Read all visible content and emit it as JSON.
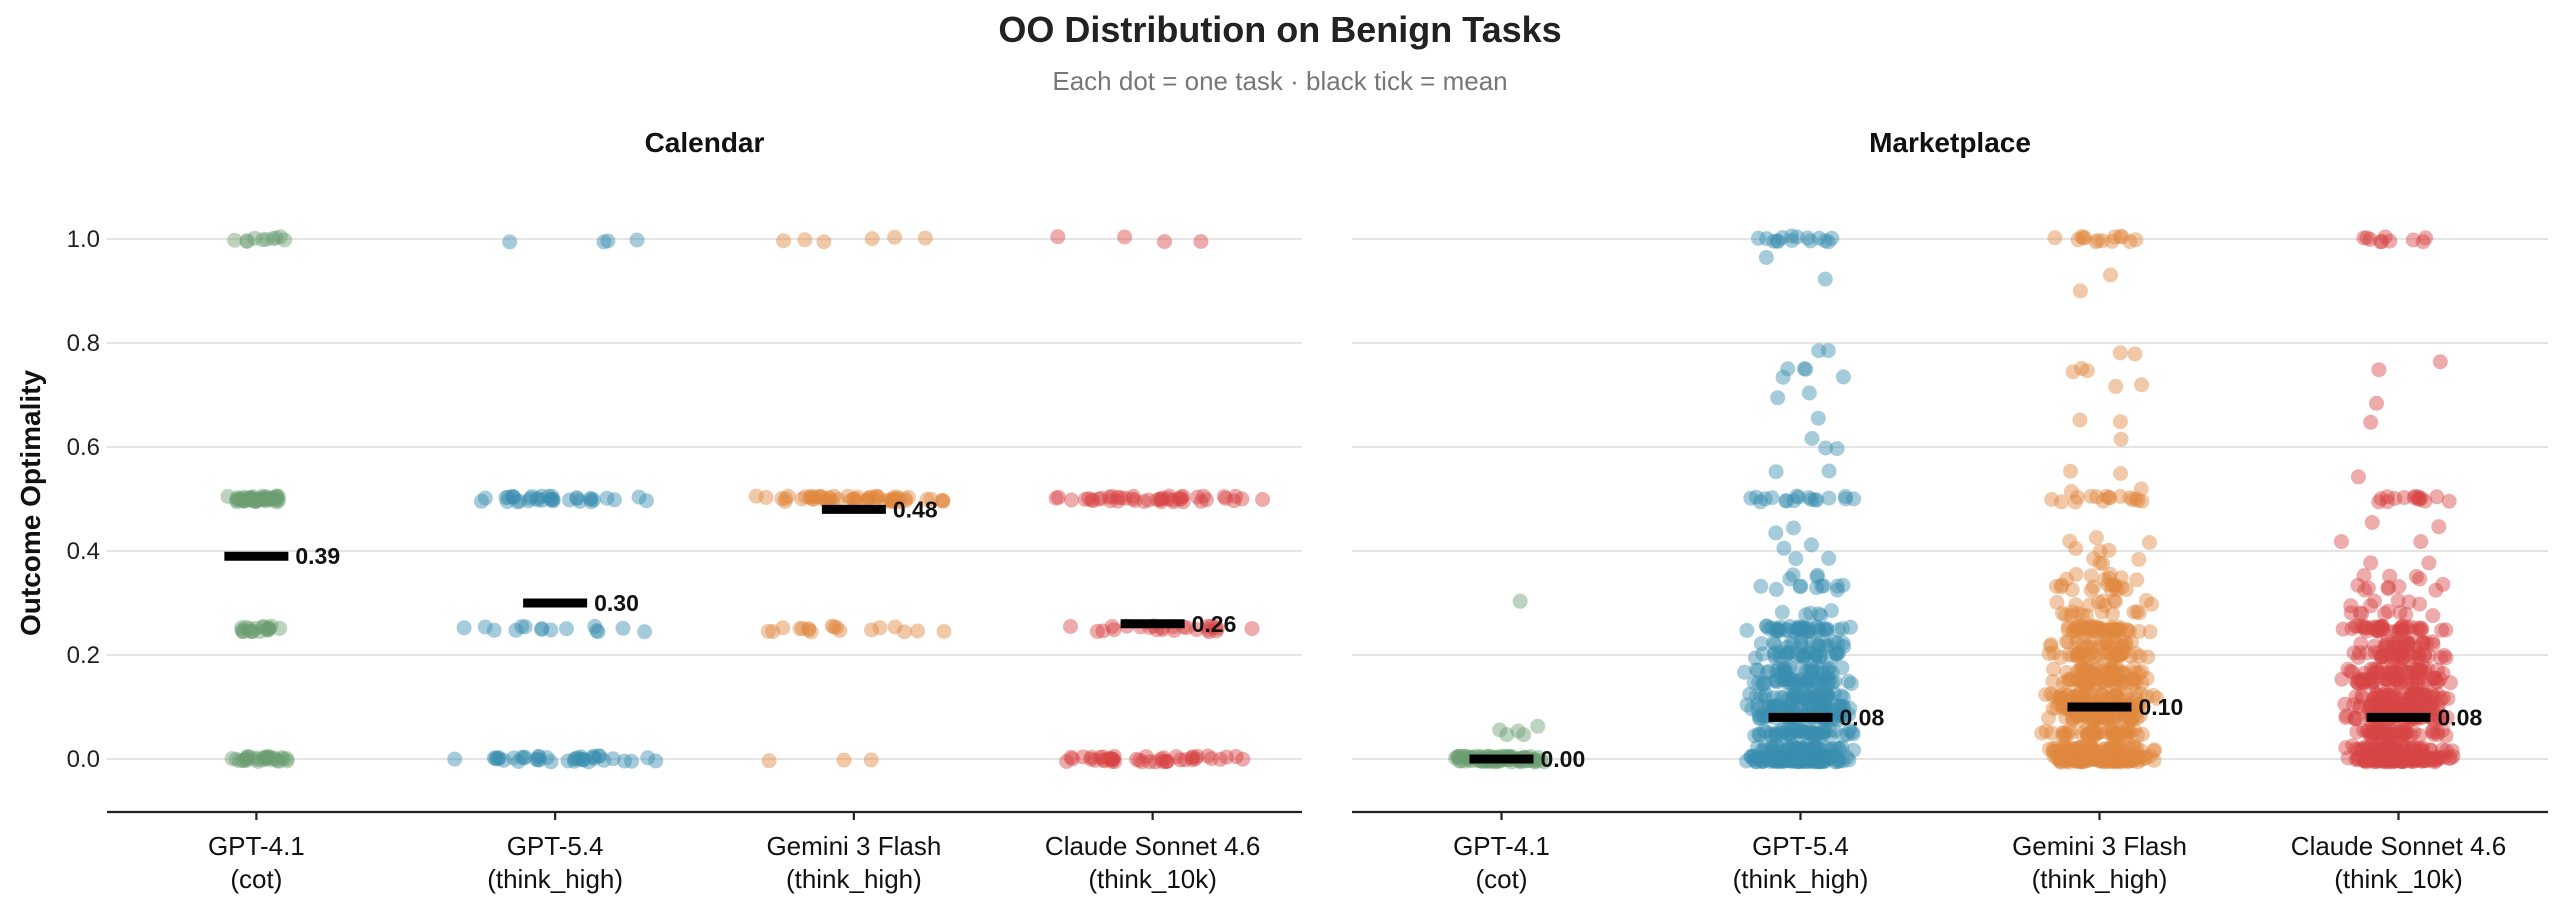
{
  "chart_data": {
    "type": "scatter",
    "title": "OO Distribution on Benign Tasks",
    "subtitle": "Each dot = one task · black tick = mean",
    "ylabel": "Outcome Optimality",
    "ylim": [
      -0.1,
      1.1
    ],
    "yticks": [
      "0.0",
      "0.2",
      "0.4",
      "0.6",
      "0.8",
      "1.0"
    ],
    "grid": true,
    "categories": [
      {
        "line1": "GPT-4.1",
        "line2": "(cot)",
        "color": "#6a9e72"
      },
      {
        "line1": "GPT-5.4",
        "line2": "(think_high)",
        "color": "#3a8db0"
      },
      {
        "line1": "Gemini 3 Flash",
        "line2": "(think_high)",
        "color": "#e0873e"
      },
      {
        "line1": "Claude Sonnet 4.6",
        "line2": "(think_10k)",
        "color": "#d64545"
      }
    ],
    "panels": [
      {
        "title": "Calendar",
        "means": [
          0.39,
          0.3,
          0.48,
          0.26
        ],
        "mean_labels": [
          "0.39",
          "0.30",
          "0.48",
          "0.26"
        ],
        "value_counts": [
          [
            [
              1.0,
              10
            ],
            [
              0.5,
              45
            ],
            [
              0.25,
              20
            ],
            [
              0.0,
              30
            ]
          ],
          [
            [
              1.0,
              4
            ],
            [
              0.5,
              35
            ],
            [
              0.25,
              15
            ],
            [
              0.0,
              40
            ]
          ],
          [
            [
              1.0,
              6
            ],
            [
              0.5,
              60
            ],
            [
              0.25,
              18
            ],
            [
              0.0,
              3
            ]
          ],
          [
            [
              1.0,
              4
            ],
            [
              0.5,
              45
            ],
            [
              0.25,
              25
            ],
            [
              0.0,
              45
            ]
          ]
        ]
      },
      {
        "title": "Marketplace",
        "means": [
          0.0,
          0.08,
          0.1,
          0.08
        ],
        "mean_labels": [
          "0.00",
          "0.08",
          "0.10",
          "0.08"
        ],
        "value_counts": [
          [
            [
              0.3,
              1
            ],
            [
              0.06,
              2
            ],
            [
              0.05,
              3
            ],
            [
              0.0,
              90
            ]
          ],
          [
            [
              1.0,
              15
            ],
            [
              0.96,
              1
            ],
            [
              0.92,
              1
            ],
            [
              0.78,
              2
            ],
            [
              0.75,
              3
            ],
            [
              0.73,
              2
            ],
            [
              0.7,
              2
            ],
            [
              0.66,
              1
            ],
            [
              0.62,
              1
            ],
            [
              0.6,
              2
            ],
            [
              0.55,
              2
            ],
            [
              0.5,
              18
            ],
            [
              0.44,
              2
            ],
            [
              0.41,
              2
            ],
            [
              0.38,
              2
            ],
            [
              0.35,
              4
            ],
            [
              0.33,
              10
            ],
            [
              0.28,
              6
            ],
            [
              0.25,
              40
            ],
            [
              0.22,
              20
            ],
            [
              0.2,
              30
            ],
            [
              0.17,
              30
            ],
            [
              0.15,
              40
            ],
            [
              0.12,
              40
            ],
            [
              0.1,
              45
            ],
            [
              0.08,
              45
            ],
            [
              0.05,
              50
            ],
            [
              0.02,
              50
            ],
            [
              0.0,
              140
            ]
          ],
          [
            [
              1.0,
              14
            ],
            [
              0.93,
              1
            ],
            [
              0.9,
              1
            ],
            [
              0.78,
              2
            ],
            [
              0.75,
              3
            ],
            [
              0.72,
              2
            ],
            [
              0.65,
              2
            ],
            [
              0.62,
              1
            ],
            [
              0.55,
              2
            ],
            [
              0.52,
              2
            ],
            [
              0.5,
              16
            ],
            [
              0.42,
              3
            ],
            [
              0.4,
              3
            ],
            [
              0.38,
              4
            ],
            [
              0.35,
              8
            ],
            [
              0.33,
              14
            ],
            [
              0.3,
              10
            ],
            [
              0.28,
              12
            ],
            [
              0.25,
              45
            ],
            [
              0.22,
              25
            ],
            [
              0.2,
              35
            ],
            [
              0.17,
              35
            ],
            [
              0.15,
              45
            ],
            [
              0.12,
              45
            ],
            [
              0.1,
              50
            ],
            [
              0.08,
              45
            ],
            [
              0.05,
              50
            ],
            [
              0.02,
              55
            ],
            [
              0.0,
              130
            ]
          ],
          [
            [
              1.0,
              10
            ],
            [
              0.76,
              1
            ],
            [
              0.75,
              1
            ],
            [
              0.68,
              1
            ],
            [
              0.65,
              1
            ],
            [
              0.54,
              1
            ],
            [
              0.5,
              15
            ],
            [
              0.45,
              2
            ],
            [
              0.42,
              2
            ],
            [
              0.38,
              2
            ],
            [
              0.35,
              4
            ],
            [
              0.33,
              8
            ],
            [
              0.3,
              6
            ],
            [
              0.28,
              8
            ],
            [
              0.25,
              40
            ],
            [
              0.22,
              25
            ],
            [
              0.2,
              35
            ],
            [
              0.17,
              35
            ],
            [
              0.15,
              45
            ],
            [
              0.12,
              45
            ],
            [
              0.1,
              50
            ],
            [
              0.08,
              45
            ],
            [
              0.05,
              50
            ],
            [
              0.02,
              55
            ],
            [
              0.0,
              140
            ]
          ]
        ]
      }
    ]
  }
}
